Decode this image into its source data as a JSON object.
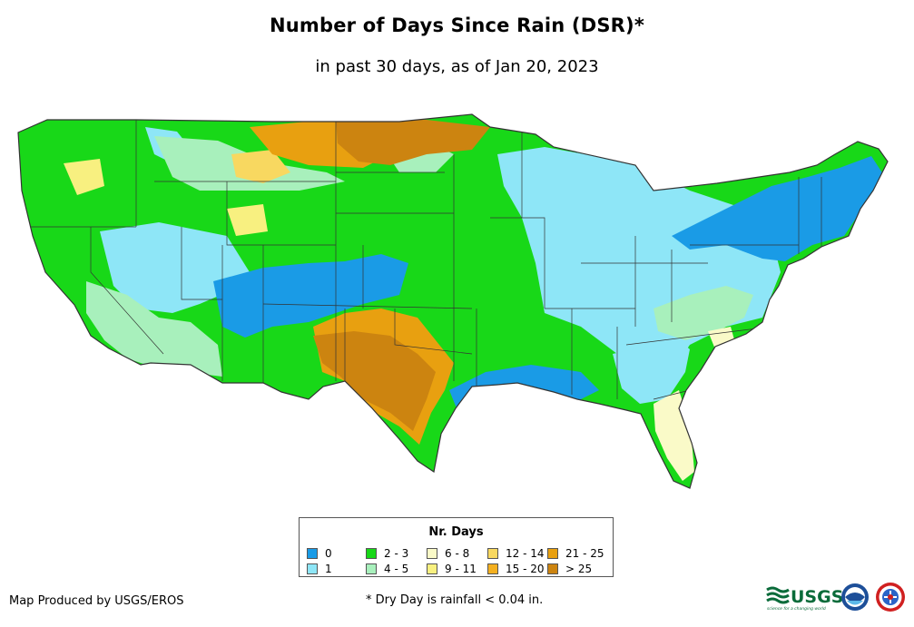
{
  "title": "Number of Days Since Rain (DSR)*",
  "subtitle": "in past 30 days, as of Jan 20, 2023",
  "legend": {
    "title": "Nr. Days",
    "items": [
      {
        "label": "0",
        "color": "#1a9be6"
      },
      {
        "label": "1",
        "color": "#8ee6f7"
      },
      {
        "label": "2 - 3",
        "color": "#18d818"
      },
      {
        "label": "4 - 5",
        "color": "#a8f0bc"
      },
      {
        "label": "6 - 8",
        "color": "#fafac8"
      },
      {
        "label": "9 - 11",
        "color": "#f8f080"
      },
      {
        "label": "12 - 14",
        "color": "#f8d860"
      },
      {
        "label": "15 - 20",
        "color": "#f4b020"
      },
      {
        "label": "21 - 25",
        "color": "#e8a010"
      },
      {
        "label": "> 25",
        "color": "#cc8410"
      }
    ]
  },
  "footer": {
    "credit": "Map Produced by USGS/EROS",
    "note": "* Dry Day is rainfall < 0.04 in."
  },
  "logos": {
    "usgs_text": "USGS",
    "usgs_tagline": "science for a changing world",
    "noaa_icon": "noaa-logo-icon",
    "nws_icon": "nws-logo-icon"
  }
}
